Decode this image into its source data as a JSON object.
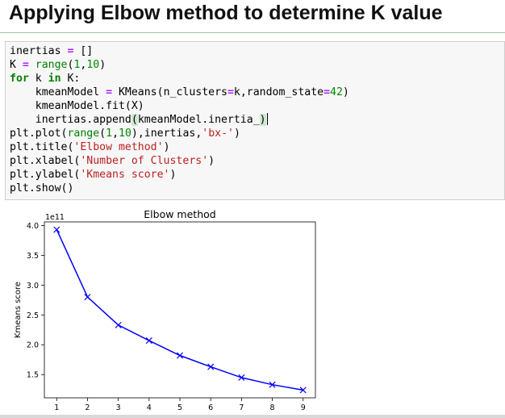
{
  "heading": {
    "title": "Applying Elbow method to determine K value"
  },
  "code_cell": {
    "lines": [
      "inertias = []",
      "K = range(1,10)",
      "for k in K:",
      "    kmeanModel = KMeans(n_clusters=k,random_state=42)",
      "    kmeanModel.fit(X)",
      "    inertias.append(kmeanModel.inertia_)",
      "plt.plot(range(1,10),inertias,'bx-')",
      "plt.title('Elbow method')",
      "plt.xlabel('Number of Clusters')",
      "plt.ylabel('Kmeans score')",
      "plt.show()"
    ]
  },
  "colors": {
    "line": "#0000ff",
    "code_bg": "#f7f7f7",
    "keyword": "#008000",
    "string": "#ba2121"
  },
  "chart_data": {
    "type": "line",
    "title": "Elbow method",
    "xlabel": "",
    "ylabel": "Kmeans score",
    "offset_label": "1e11",
    "x": [
      1,
      2,
      3,
      4,
      5,
      6,
      7,
      8,
      9
    ],
    "series": [
      {
        "values": [
          3.93,
          2.8,
          2.33,
          2.07,
          1.82,
          1.63,
          1.45,
          1.33,
          1.24
        ],
        "color": "#0000ff",
        "marker": "x",
        "linestyle": "solid"
      }
    ],
    "xticks": [
      "1",
      "2",
      "3",
      "4",
      "5",
      "6",
      "7",
      "8",
      "9"
    ],
    "yticks": [
      "1.5",
      "2.0",
      "2.5",
      "3.0",
      "3.5",
      "4.0"
    ],
    "ytick_values": [
      1.5,
      2.0,
      2.5,
      3.0,
      3.5,
      4.0
    ],
    "xlim": [
      0.6,
      9.4
    ],
    "ylim": [
      1.11,
      4.06
    ],
    "grid": false,
    "legend": "none"
  }
}
